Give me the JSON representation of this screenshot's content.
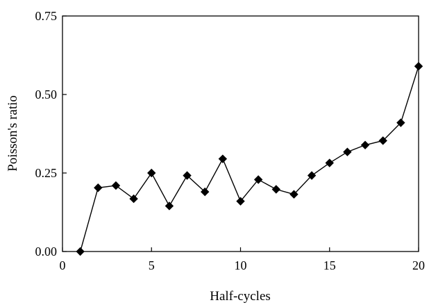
{
  "chart_data": {
    "type": "line",
    "xlabel": "Half-cycles",
    "ylabel": "Poisson's  ratio",
    "xlim": [
      0,
      20
    ],
    "ylim": [
      0,
      0.75
    ],
    "xticks": [
      0,
      5,
      10,
      15,
      20
    ],
    "xtick_labels": [
      "0",
      "5",
      "10",
      "15",
      "20"
    ],
    "yticks": [
      0,
      0.25,
      0.5,
      0.75
    ],
    "ytick_labels": [
      "0.00",
      "0.25",
      "0.50",
      "0.75"
    ],
    "grid": false,
    "marker": "diamond",
    "series": [
      {
        "x": [
          1,
          2,
          3,
          4,
          5,
          6,
          7,
          8,
          9,
          10,
          11,
          12,
          13,
          14,
          15,
          16,
          17,
          18,
          19,
          20
        ],
        "y": [
          0.0,
          0.203,
          0.21,
          0.168,
          0.25,
          0.145,
          0.242,
          0.19,
          0.295,
          0.16,
          0.229,
          0.198,
          0.182,
          0.242,
          0.282,
          0.317,
          0.339,
          0.353,
          0.41,
          0.59
        ],
        "color": "#000000"
      }
    ]
  }
}
